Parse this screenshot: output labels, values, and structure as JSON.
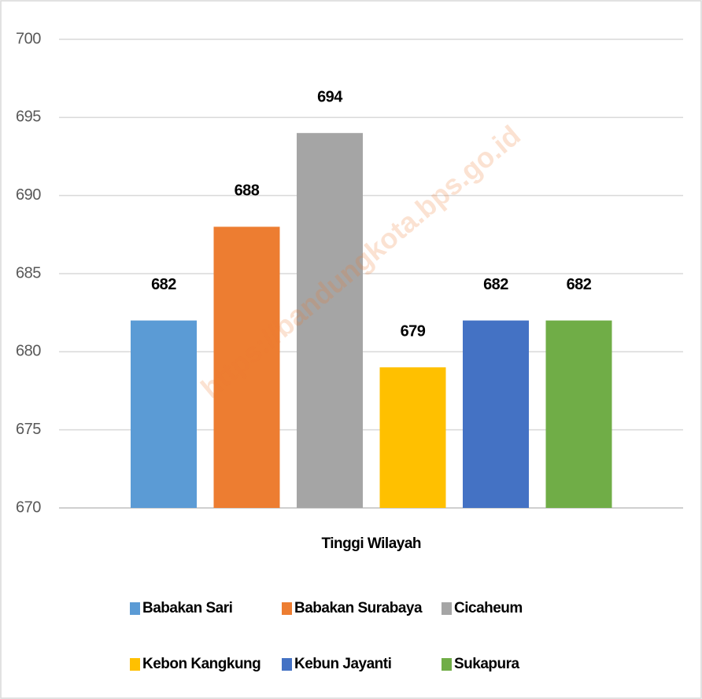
{
  "chart_data": {
    "type": "bar",
    "watermark": "https://bandungkota.bps.go.id",
    "categories": [
      "Tinggi Wilayah"
    ],
    "series": [
      {
        "name": "Babakan Sari",
        "color": "#5b9bd5",
        "values": [
          682
        ]
      },
      {
        "name": "Babakan Surabaya",
        "color": "#ed7d31",
        "values": [
          688
        ]
      },
      {
        "name": "Cicaheum",
        "color": "#a5a5a5",
        "values": [
          694
        ]
      },
      {
        "name": "Kebon Kangkung",
        "color": "#ffc000",
        "values": [
          679
        ]
      },
      {
        "name": "Kebun Jayanti",
        "color": "#4472c4",
        "values": [
          682
        ]
      },
      {
        "name": "Sukapura",
        "color": "#70ad47",
        "values": [
          682
        ]
      }
    ],
    "ylim": [
      670,
      700
    ],
    "yticks": [
      670,
      675,
      680,
      685,
      690,
      695,
      700
    ],
    "grid": true,
    "legend": "bottom"
  }
}
